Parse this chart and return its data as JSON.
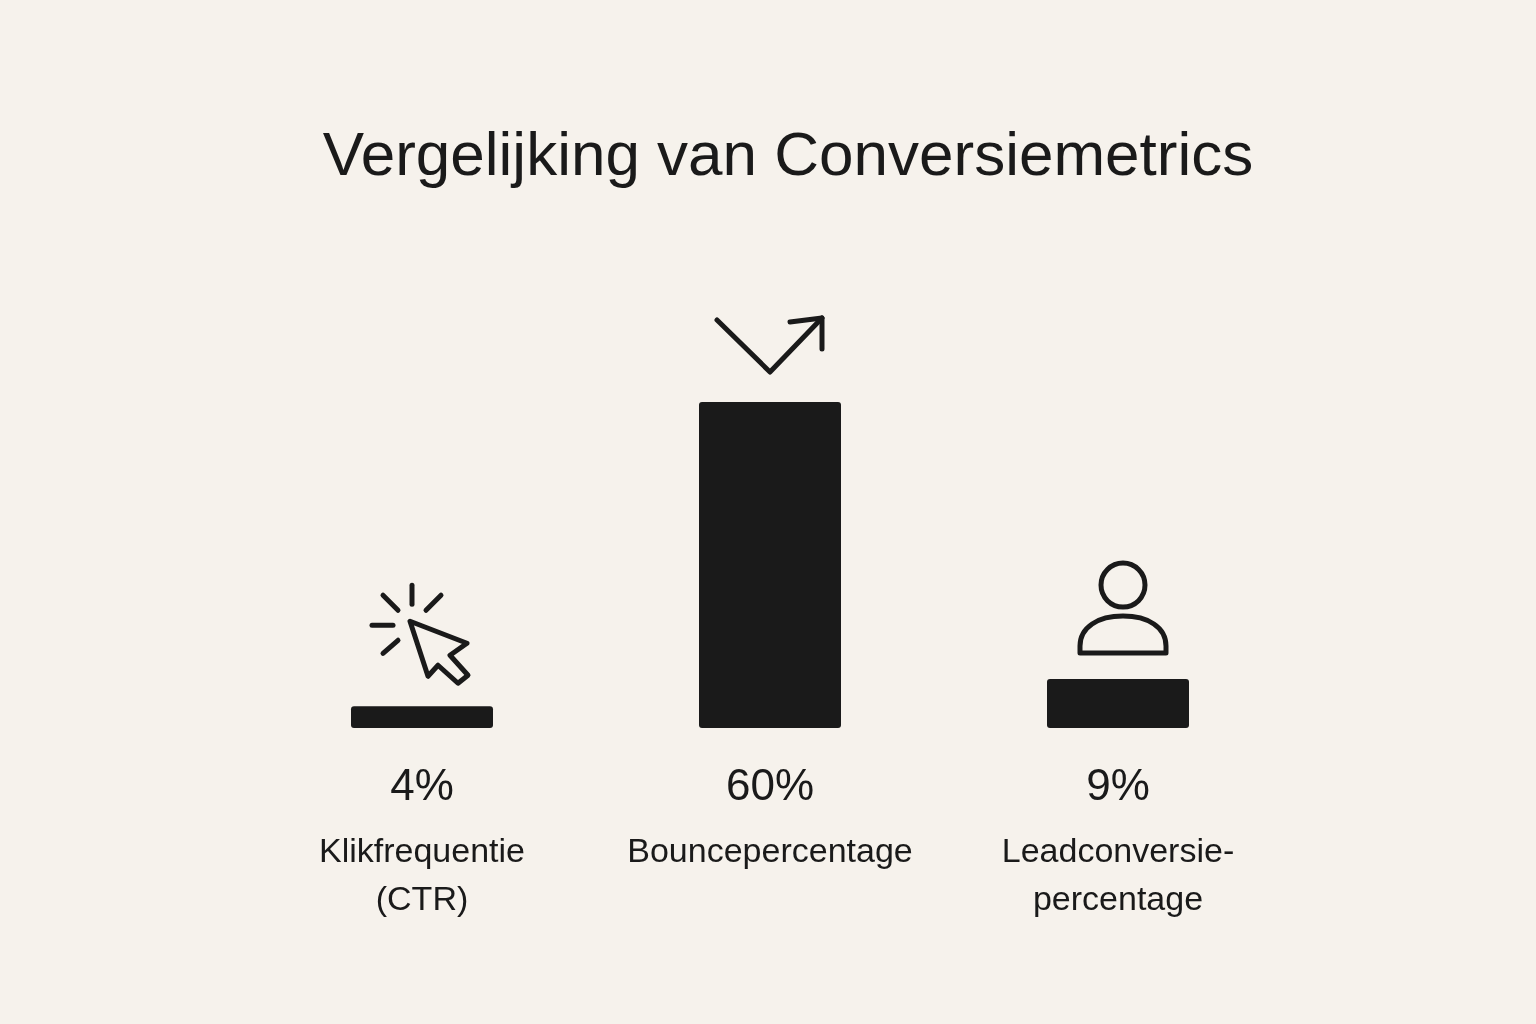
{
  "chart_data": {
    "type": "bar",
    "title": "Vergelijking van Conversiemetrics",
    "categories": [
      "Klikfrequentie (CTR)",
      "Bouncepercentage",
      "Leadconversie-percentage"
    ],
    "values": [
      4,
      60,
      9
    ],
    "value_labels": [
      "4%",
      "60%",
      "9%"
    ],
    "color": "#1a1a1a",
    "tick_labels": "x"
  }
}
